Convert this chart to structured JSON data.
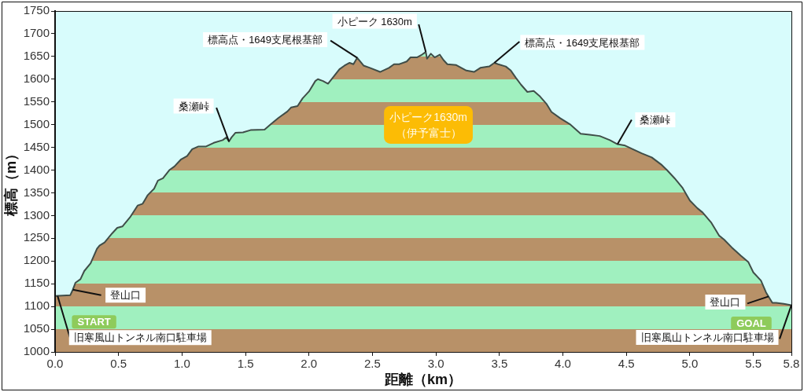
{
  "chart_data": {
    "type": "area",
    "xlabel": "距離（km）",
    "ylabel": "標高（m）",
    "x": [
      0,
      0.06,
      0.12,
      0.14,
      0.16,
      0.2,
      0.23,
      0.28,
      0.33,
      0.35,
      0.39,
      0.45,
      0.49,
      0.53,
      0.59,
      0.65,
      0.69,
      0.73,
      0.78,
      0.81,
      0.85,
      0.9,
      0.94,
      0.99,
      1.04,
      1.08,
      1.13,
      1.19,
      1.25,
      1.32,
      1.35,
      1.37,
      1.39,
      1.42,
      1.48,
      1.54,
      1.65,
      1.7,
      1.76,
      1.83,
      1.86,
      1.91,
      1.95,
      2.0,
      2.05,
      2.07,
      2.11,
      2.15,
      2.19,
      2.24,
      2.28,
      2.32,
      2.35,
      2.38,
      2.43,
      2.48,
      2.56,
      2.63,
      2.67,
      2.71,
      2.77,
      2.8,
      2.85,
      2.89,
      2.92,
      2.93,
      2.96,
      2.99,
      3.03,
      3.06,
      3.09,
      3.16,
      3.24,
      3.3,
      3.35,
      3.42,
      3.46,
      3.49,
      3.55,
      3.59,
      3.63,
      3.67,
      3.72,
      3.77,
      3.82,
      3.87,
      3.91,
      3.98,
      4.06,
      4.14,
      4.21,
      4.29,
      4.37,
      4.43,
      4.49,
      4.55,
      4.62,
      4.7,
      4.78,
      4.82,
      4.88,
      4.94,
      5.0,
      5.06,
      5.1,
      5.17,
      5.23,
      5.27,
      5.33,
      5.4,
      5.46,
      5.5,
      5.56,
      5.6,
      5.65,
      5.68,
      5.74,
      5.8
    ],
    "values": [
      1123,
      1124,
      1125,
      1137,
      1152,
      1160,
      1178,
      1195,
      1227,
      1234,
      1241,
      1261,
      1273,
      1276,
      1296,
      1322,
      1326,
      1345,
      1359,
      1377,
      1382,
      1400,
      1408,
      1423,
      1431,
      1446,
      1452,
      1452,
      1460,
      1466,
      1472,
      1463,
      1472,
      1482,
      1483,
      1488,
      1489,
      1501,
      1515,
      1529,
      1538,
      1541,
      1558,
      1573,
      1596,
      1600,
      1596,
      1590,
      1604,
      1622,
      1630,
      1636,
      1633,
      1647,
      1630,
      1625,
      1616,
      1625,
      1633,
      1633,
      1639,
      1648,
      1648,
      1654,
      1660,
      1645,
      1656,
      1648,
      1654,
      1642,
      1633,
      1631,
      1619,
      1616,
      1625,
      1628,
      1636,
      1633,
      1628,
      1619,
      1603,
      1588,
      1572,
      1574,
      1562,
      1546,
      1528,
      1514,
      1500,
      1480,
      1478,
      1475,
      1466,
      1457,
      1454,
      1446,
      1437,
      1428,
      1411,
      1400,
      1382,
      1362,
      1333,
      1316,
      1307,
      1284,
      1256,
      1247,
      1230,
      1212,
      1198,
      1175,
      1157,
      1131,
      1108,
      1108,
      1106,
      1103
    ],
    "color": "#b89168",
    "xlim": [
      0,
      5.8
    ],
    "xticks": [
      {
        "value": 0,
        "label": "0.0"
      },
      0.5,
      {
        "value": 1,
        "label": "1.0"
      },
      1.5,
      {
        "value": 2,
        "label": "2.0"
      },
      2.5,
      {
        "value": 3,
        "label": "3.0"
      },
      3.5,
      {
        "value": 4,
        "label": "4.0"
      },
      4.5,
      {
        "value": 5,
        "label": "5.0"
      },
      5.5,
      5.8
    ],
    "ylim": [
      1000,
      1750
    ],
    "yticks": [
      1000,
      1050,
      1100,
      1150,
      1200,
      1250,
      1300,
      1350,
      1400,
      1450,
      1500,
      1550,
      1600,
      1650,
      1700,
      1750
    ],
    "annotations": [
      {
        "text": "小ピーク 1630m",
        "x": 2.92,
        "y": 1660
      },
      {
        "text": "標高点・1649支尾根基部",
        "x": 2.38,
        "y": 1647
      },
      {
        "text": "標高点・1649支尾根基部",
        "x": 3.46,
        "y": 1636
      },
      {
        "text": "桑瀬峠",
        "x": 1.37,
        "y": 1463
      },
      {
        "text": "桑瀬峠",
        "x": 4.43,
        "y": 1457
      },
      {
        "text": "登山口",
        "x": 0.14,
        "y": 1137
      },
      {
        "text": "登山口",
        "x": 5.62,
        "y": 1122
      },
      {
        "text": "旧寒風山トンネル南口駐車場",
        "x": 0.02,
        "y": 1123
      },
      {
        "text": "旧寒風山トンネル南口駐車場",
        "x": 5.8,
        "y": 1103
      },
      "START",
      "GOAL",
      "小ピーク1630m\n（伊予富士）"
    ]
  }
}
